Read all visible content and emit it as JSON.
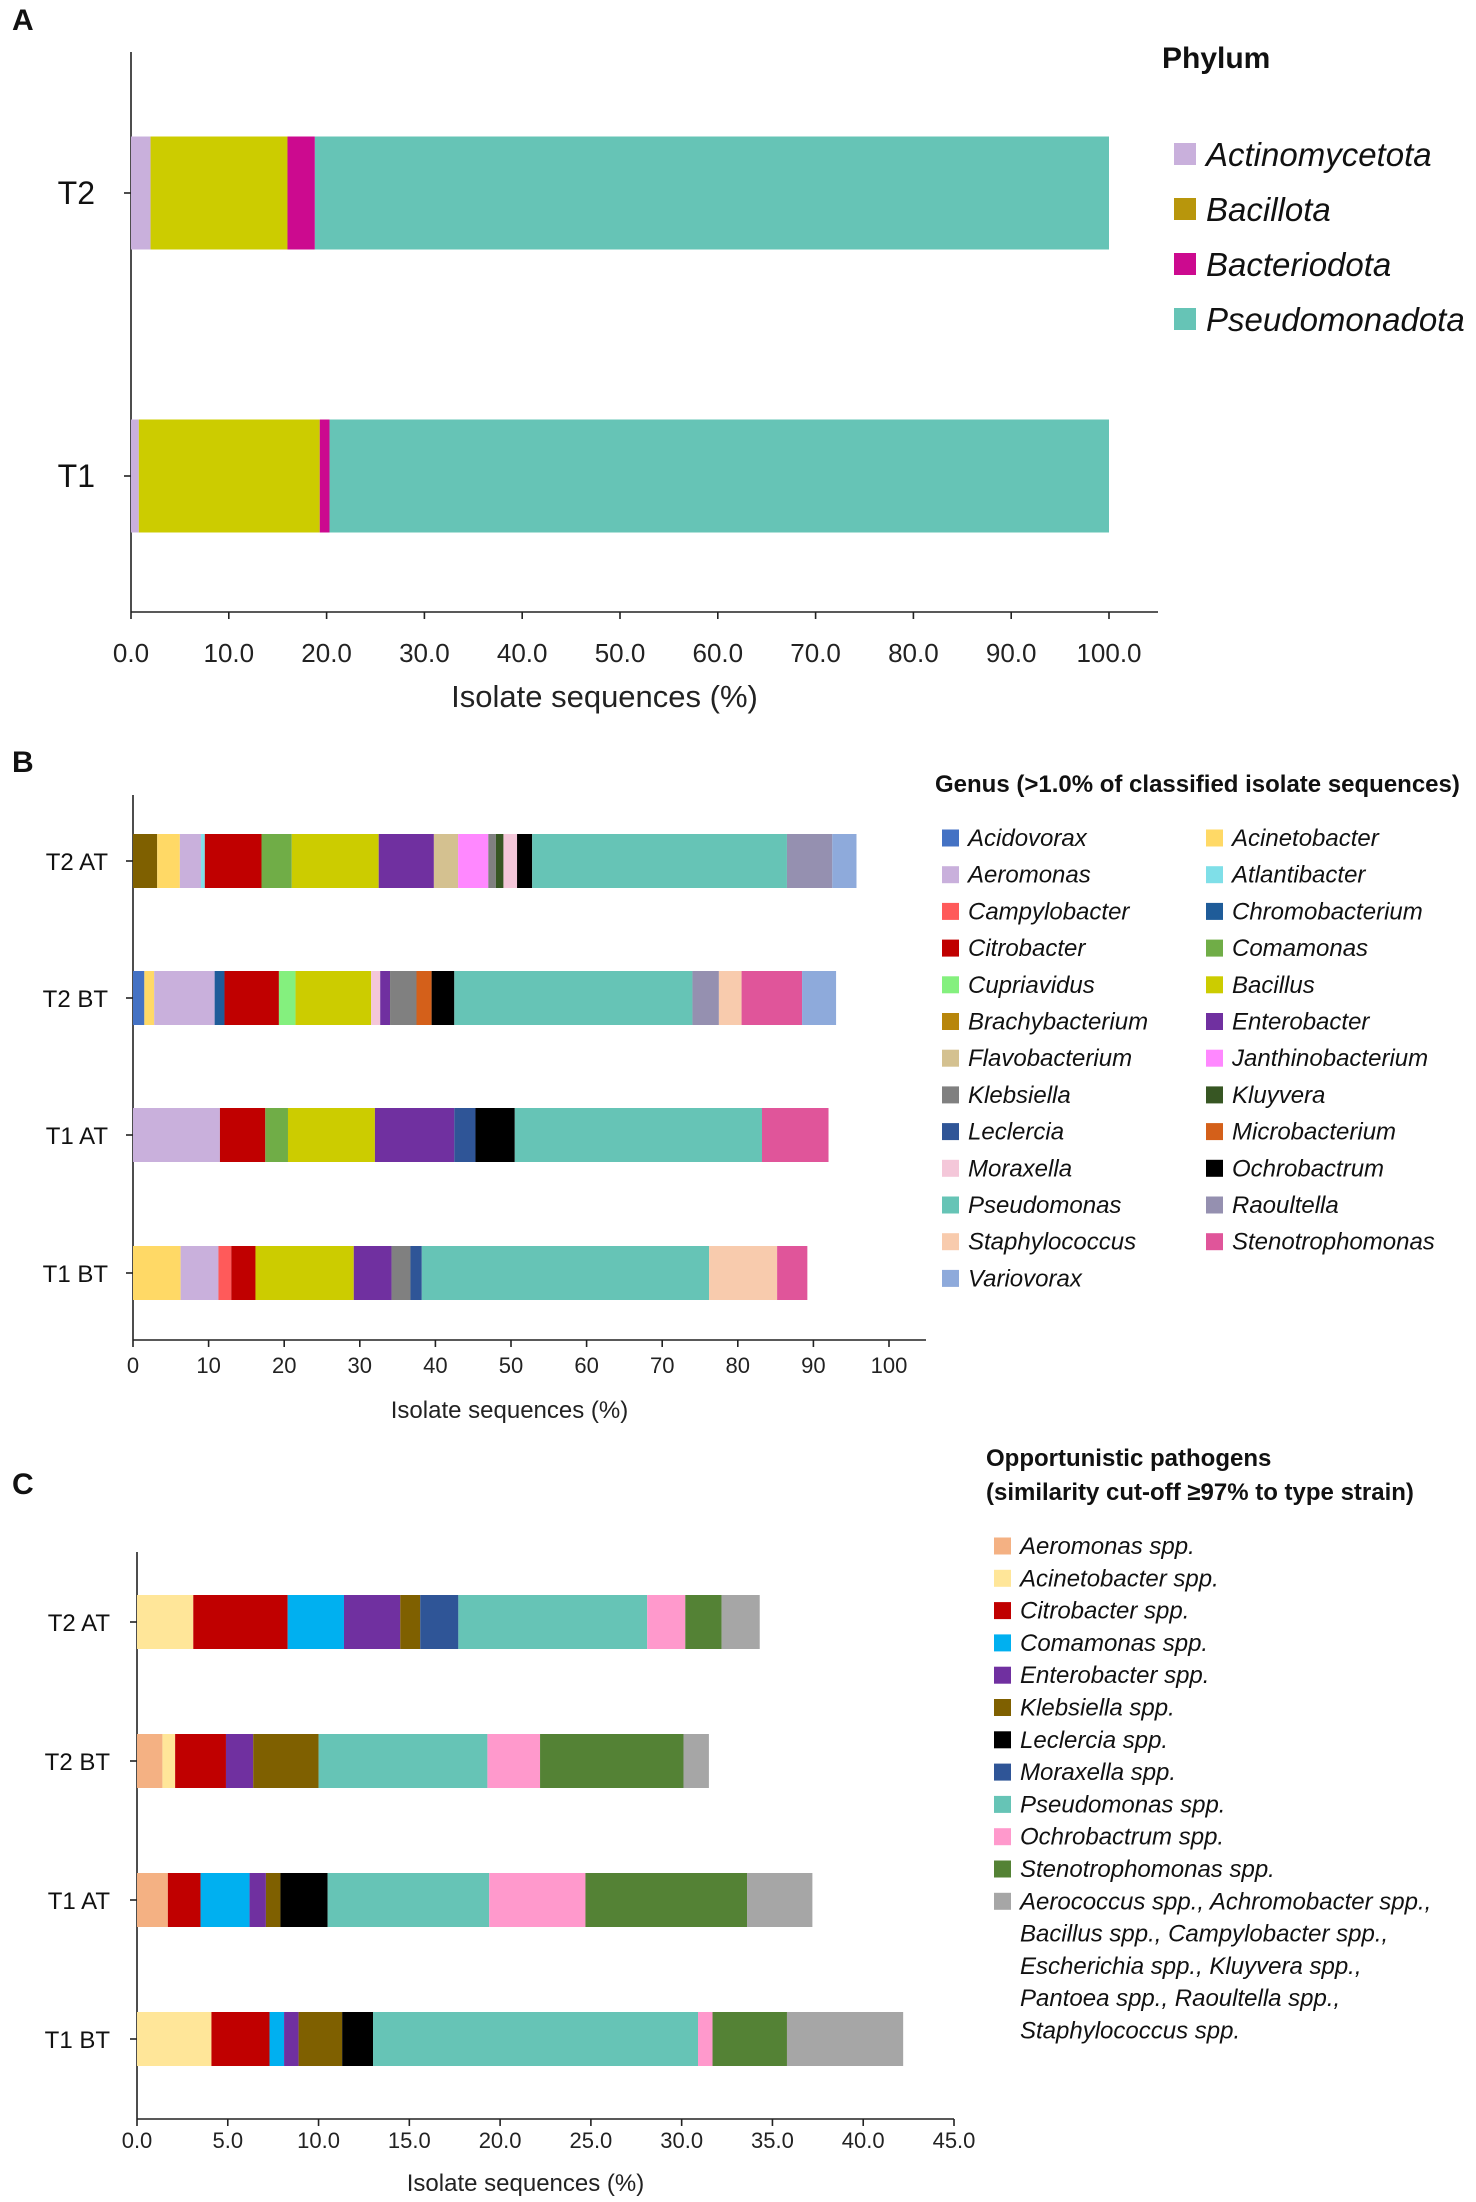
{
  "chart_data": [
    {
      "panel": "A",
      "type": "bar",
      "orientation": "horizontal",
      "stacked": true,
      "categories": [
        "T2",
        "T1"
      ],
      "xlabel": "Isolate sequences (%)",
      "xticks": [
        "0.0",
        "10.0",
        "20.0",
        "30.0",
        "40.0",
        "50.0",
        "60.0",
        "70.0",
        "80.0",
        "90.0",
        "100.0"
      ],
      "xlim": [
        0,
        105
      ],
      "legend_title": "Phylum",
      "legend_position": "right",
      "series": [
        {
          "name": "Actinomycetota",
          "color": "#c9b0dc",
          "values": [
            2.0,
            0.8
          ]
        },
        {
          "name": "Bacillota",
          "color": "#b8960c",
          "values": [
            0,
            0
          ]
        },
        {
          "name": "Bacillota (yellow segment)",
          "color": "#cccc00",
          "values": [
            14.0,
            18.5
          ]
        },
        {
          "name": "Bacteriodota",
          "color": "#cc0a8f",
          "values": [
            2.8,
            1.0
          ]
        },
        {
          "name": "Pseudomonadota",
          "color": "#66c4b6",
          "values": [
            81.2,
            79.7
          ]
        }
      ],
      "legend": [
        {
          "name": "Actinomycetota",
          "color": "#c9b0dc"
        },
        {
          "name": "Bacillota",
          "color": "#b8960c"
        },
        {
          "name": "Bacteriodota",
          "color": "#cc0a8f"
        },
        {
          "name": "Pseudomonadota",
          "color": "#66c4b6"
        }
      ]
    },
    {
      "panel": "B",
      "type": "bar",
      "orientation": "horizontal",
      "stacked": true,
      "categories": [
        "T2 AT",
        "T2 BT",
        "T1 AT",
        "T1 BT"
      ],
      "xlabel": "Isolate sequences (%)",
      "xticks": [
        "0",
        "10",
        "20",
        "30",
        "40",
        "50",
        "60",
        "70",
        "80",
        "90",
        "100"
      ],
      "xlim": [
        0,
        105
      ],
      "legend_title": "Genus (>1.0% of classified isolate sequences)",
      "legend_position": "right",
      "legend": [
        {
          "name": "Acidovorax",
          "color": "#4472c4"
        },
        {
          "name": "Acinetobacter",
          "color": "#ffd966"
        },
        {
          "name": "Aeromonas",
          "color": "#c9b0dc"
        },
        {
          "name": "Atlantibacter",
          "color": "#7fdfe8"
        },
        {
          "name": "Campylobacter",
          "color": "#ff5a5a"
        },
        {
          "name": "Chromobacterium",
          "color": "#1f5c99"
        },
        {
          "name": "Citrobacter",
          "color": "#c00000"
        },
        {
          "name": "Comamonas",
          "color": "#70ad47"
        },
        {
          "name": "Cupriavidus",
          "color": "#84f07e"
        },
        {
          "name": "Bacillus",
          "color": "#cccc00"
        },
        {
          "name": "Brachybacterium",
          "color": "#b8860b"
        },
        {
          "name": "Enterobacter",
          "color": "#7030a0"
        },
        {
          "name": "Flavobacterium",
          "color": "#d4c190"
        },
        {
          "name": "Janthinobacterium",
          "color": "#ff88ff"
        },
        {
          "name": "Klebsiella",
          "color": "#808080"
        },
        {
          "name": "Kluyvera",
          "color": "#375623"
        },
        {
          "name": "Leclercia",
          "color": "#2f5597"
        },
        {
          "name": "Microbacterium",
          "color": "#d4601a"
        },
        {
          "name": "Moraxella",
          "color": "#f4c7d9"
        },
        {
          "name": "Ochrobactrum",
          "color": "#000000"
        },
        {
          "name": "Pseudomonas",
          "color": "#66c4b6"
        },
        {
          "name": "Raoultella",
          "color": "#9590b0"
        },
        {
          "name": "Staphylococcus",
          "color": "#f8cbad"
        },
        {
          "name": "Stenotrophomonas",
          "color": "#e0559a"
        },
        {
          "name": "Variovorax",
          "color": "#8eaadb"
        }
      ],
      "stacks": [
        {
          "category": "T2 AT",
          "segments": [
            {
              "genus": "Brachybacterium",
              "color": "#7f6000",
              "value": 3.2
            },
            {
              "genus": "Acinetobacter",
              "color": "#ffd966",
              "value": 3.0
            },
            {
              "genus": "Aeromonas",
              "color": "#c9b0dc",
              "value": 2.8
            },
            {
              "genus": "Atlantibacter",
              "color": "#7fdfe8",
              "value": 0.5
            },
            {
              "genus": "Citrobacter",
              "color": "#c00000",
              "value": 7.5
            },
            {
              "genus": "Comamonas",
              "color": "#70ad47",
              "value": 4.0
            },
            {
              "genus": "Bacillus",
              "color": "#cccc00",
              "value": 11.5
            },
            {
              "genus": "Enterobacter",
              "color": "#7030a0",
              "value": 7.3
            },
            {
              "genus": "Flavobacterium",
              "color": "#d4c190",
              "value": 3.2
            },
            {
              "genus": "Janthinobacterium",
              "color": "#ff88ff",
              "value": 4.0
            },
            {
              "genus": "Klebsiella",
              "color": "#808080",
              "value": 1.0
            },
            {
              "genus": "Kluyvera",
              "color": "#375623",
              "value": 1.0
            },
            {
              "genus": "Moraxella",
              "color": "#f4c7d9",
              "value": 1.8
            },
            {
              "genus": "Ochrobactrum",
              "color": "#000000",
              "value": 2.0
            },
            {
              "genus": "Pseudomonas",
              "color": "#66c4b6",
              "value": 33.7
            },
            {
              "genus": "Raoultella",
              "color": "#9590b0",
              "value": 6.0
            },
            {
              "genus": "Variovorax",
              "color": "#8eaadb",
              "value": 3.2
            }
          ]
        },
        {
          "category": "T2 BT",
          "segments": [
            {
              "genus": "Acidovorax",
              "color": "#4472c4",
              "value": 1.5
            },
            {
              "genus": "Acinetobacter",
              "color": "#ffd966",
              "value": 1.3
            },
            {
              "genus": "Aeromonas",
              "color": "#c9b0dc",
              "value": 8.0
            },
            {
              "genus": "Chromobacterium",
              "color": "#1f5c99",
              "value": 1.3
            },
            {
              "genus": "Citrobacter",
              "color": "#c00000",
              "value": 7.2
            },
            {
              "genus": "Cupriavidus",
              "color": "#84f07e",
              "value": 2.2
            },
            {
              "genus": "Bacillus",
              "color": "#cccc00",
              "value": 10.0
            },
            {
              "genus": "Moraxella",
              "color": "#f4c7d9",
              "value": 1.2
            },
            {
              "genus": "Enterobacter",
              "color": "#7030a0",
              "value": 1.3
            },
            {
              "genus": "Klebsiella",
              "color": "#808080",
              "value": 3.5
            },
            {
              "genus": "Microbacterium",
              "color": "#d4601a",
              "value": 2.0
            },
            {
              "genus": "Ochrobactrum",
              "color": "#000000",
              "value": 3.0
            },
            {
              "genus": "Pseudomonas",
              "color": "#66c4b6",
              "value": 31.5
            },
            {
              "genus": "Raoultella",
              "color": "#9590b0",
              "value": 3.5
            },
            {
              "genus": "Staphylococcus",
              "color": "#f8cbad",
              "value": 3.0
            },
            {
              "genus": "Stenotrophomonas",
              "color": "#e0559a",
              "value": 8.0
            },
            {
              "genus": "Variovorax",
              "color": "#8eaadb",
              "value": 4.5
            }
          ]
        },
        {
          "category": "T1 AT",
          "segments": [
            {
              "genus": "Aeromonas",
              "color": "#c9b0dc",
              "value": 11.5
            },
            {
              "genus": "Citrobacter",
              "color": "#c00000",
              "value": 6.0
            },
            {
              "genus": "Comamonas",
              "color": "#70ad47",
              "value": 3.0
            },
            {
              "genus": "Bacillus",
              "color": "#cccc00",
              "value": 11.5
            },
            {
              "genus": "Enterobacter",
              "color": "#7030a0",
              "value": 10.5
            },
            {
              "genus": "Leclercia",
              "color": "#2f5597",
              "value": 2.8
            },
            {
              "genus": "Ochrobactrum",
              "color": "#000000",
              "value": 5.2
            },
            {
              "genus": "Pseudomonas",
              "color": "#66c4b6",
              "value": 32.7
            },
            {
              "genus": "Stenotrophomonas",
              "color": "#e0559a",
              "value": 8.8
            }
          ]
        },
        {
          "category": "T1 BT",
          "segments": [
            {
              "genus": "Acinetobacter",
              "color": "#ffd966",
              "value": 6.3
            },
            {
              "genus": "Aeromonas",
              "color": "#c9b0dc",
              "value": 5.0
            },
            {
              "genus": "Campylobacter",
              "color": "#ff5a5a",
              "value": 1.7
            },
            {
              "genus": "Citrobacter",
              "color": "#c00000",
              "value": 3.2
            },
            {
              "genus": "Bacillus",
              "color": "#cccc00",
              "value": 13.0
            },
            {
              "genus": "Enterobacter",
              "color": "#7030a0",
              "value": 5.0
            },
            {
              "genus": "Klebsiella",
              "color": "#808080",
              "value": 2.5
            },
            {
              "genus": "Leclercia",
              "color": "#2f5597",
              "value": 1.5
            },
            {
              "genus": "Pseudomonas",
              "color": "#66c4b6",
              "value": 38.0
            },
            {
              "genus": "Staphylococcus",
              "color": "#f8cbad",
              "value": 9.0
            },
            {
              "genus": "Stenotrophomonas",
              "color": "#e0559a",
              "value": 4.0
            }
          ]
        }
      ]
    },
    {
      "panel": "C",
      "type": "bar",
      "orientation": "horizontal",
      "stacked": true,
      "categories": [
        "T2 AT",
        "T2 BT",
        "T1 AT",
        "T1 BT"
      ],
      "xlabel": "Isolate sequences (%)",
      "xticks": [
        "0.0",
        "5.0",
        "10.0",
        "15.0",
        "20.0",
        "25.0",
        "30.0",
        "35.0",
        "40.0",
        "45.0"
      ],
      "xlim": [
        0,
        45
      ],
      "legend_title": [
        "Opportunistic pathogens",
        "(similarity cut-off ≥97% to type strain)"
      ],
      "legend_position": "right",
      "legend": [
        {
          "name": "Aeromonas spp.",
          "color": "#f4b183"
        },
        {
          "name": "Acinetobacter spp.",
          "color": "#ffe699"
        },
        {
          "name": "Citrobacter spp.",
          "color": "#c00000"
        },
        {
          "name": "Comamonas spp.",
          "color": "#00b0f0"
        },
        {
          "name": "Enterobacter spp.",
          "color": "#7030a0"
        },
        {
          "name": "Klebsiella spp.",
          "color": "#7f6000"
        },
        {
          "name": "Leclercia spp.",
          "color": "#000000"
        },
        {
          "name": "Moraxella spp.",
          "color": "#2f5597"
        },
        {
          "name": "Pseudomonas spp.",
          "color": "#66c4b6"
        },
        {
          "name": "Ochrobactrum spp.",
          "color": "#ff99cc"
        },
        {
          "name": "Stenotrophomonas spp.",
          "color": "#548235"
        },
        {
          "name": "Aerococcus spp., Achromobacter spp.,",
          "continuation": [
            "Bacillus spp., Campylobacter spp.,",
            "Escherichia spp., Kluyvera spp.,",
            "Pantoea spp., Raoultella spp.,",
            "Staphylococcus spp."
          ],
          "color": "#a6a6a6"
        }
      ],
      "stacks": [
        {
          "category": "T2 AT",
          "segments": [
            {
              "taxon": "Acinetobacter spp.",
              "color": "#ffe699",
              "value": 3.1
            },
            {
              "taxon": "Citrobacter spp.",
              "color": "#c00000",
              "value": 5.2
            },
            {
              "taxon": "Comamonas spp.",
              "color": "#00b0f0",
              "value": 3.1
            },
            {
              "taxon": "Enterobacter spp.",
              "color": "#7030a0",
              "value": 3.1
            },
            {
              "taxon": "Klebsiella spp.",
              "color": "#7f6000",
              "value": 1.1
            },
            {
              "taxon": "Moraxella spp.",
              "color": "#2f5597",
              "value": 2.1
            },
            {
              "taxon": "Pseudomonas spp.",
              "color": "#66c4b6",
              "value": 10.4
            },
            {
              "taxon": "Ochrobactrum spp.",
              "color": "#ff99cc",
              "value": 2.1
            },
            {
              "taxon": "Stenotrophomonas spp.",
              "color": "#548235",
              "value": 2.0
            },
            {
              "taxon": "Other",
              "color": "#a6a6a6",
              "value": 2.1
            }
          ]
        },
        {
          "category": "T2 BT",
          "segments": [
            {
              "taxon": "Aeromonas spp.",
              "color": "#f4b183",
              "value": 1.4
            },
            {
              "taxon": "Acinetobacter spp.",
              "color": "#ffe699",
              "value": 0.7
            },
            {
              "taxon": "Citrobacter spp.",
              "color": "#c00000",
              "value": 2.8
            },
            {
              "taxon": "Enterobacter spp.",
              "color": "#7030a0",
              "value": 1.5
            },
            {
              "taxon": "Klebsiella spp.",
              "color": "#7f6000",
              "value": 3.6
            },
            {
              "taxon": "Pseudomonas spp.",
              "color": "#66c4b6",
              "value": 9.3
            },
            {
              "taxon": "Ochrobactrum spp.",
              "color": "#ff99cc",
              "value": 2.9
            },
            {
              "taxon": "Stenotrophomonas spp.",
              "color": "#548235",
              "value": 7.9
            },
            {
              "taxon": "Other",
              "color": "#a6a6a6",
              "value": 1.4
            }
          ]
        },
        {
          "category": "T1 AT",
          "segments": [
            {
              "taxon": "Aeromonas spp.",
              "color": "#f4b183",
              "value": 1.7
            },
            {
              "taxon": "Citrobacter spp.",
              "color": "#c00000",
              "value": 1.8
            },
            {
              "taxon": "Comamonas spp.",
              "color": "#00b0f0",
              "value": 2.7
            },
            {
              "taxon": "Enterobacter spp.",
              "color": "#7030a0",
              "value": 0.9
            },
            {
              "taxon": "Klebsiella spp.",
              "color": "#7f6000",
              "value": 0.8
            },
            {
              "taxon": "Leclercia spp.",
              "color": "#000000",
              "value": 2.6
            },
            {
              "taxon": "Pseudomonas spp.",
              "color": "#66c4b6",
              "value": 8.9
            },
            {
              "taxon": "Ochrobactrum spp.",
              "color": "#ff99cc",
              "value": 5.3
            },
            {
              "taxon": "Stenotrophomonas spp.",
              "color": "#548235",
              "value": 8.9
            },
            {
              "taxon": "Other",
              "color": "#a6a6a6",
              "value": 3.6
            }
          ]
        },
        {
          "category": "T1 BT",
          "segments": [
            {
              "taxon": "Acinetobacter spp.",
              "color": "#ffe699",
              "value": 4.1
            },
            {
              "taxon": "Citrobacter spp.",
              "color": "#c00000",
              "value": 3.2
            },
            {
              "taxon": "Comamonas spp.",
              "color": "#00b0f0",
              "value": 0.8
            },
            {
              "taxon": "Enterobacter spp.",
              "color": "#7030a0",
              "value": 0.8
            },
            {
              "taxon": "Klebsiella spp.",
              "color": "#7f6000",
              "value": 2.4
            },
            {
              "taxon": "Leclercia spp.",
              "color": "#000000",
              "value": 1.7
            },
            {
              "taxon": "Pseudomonas spp.",
              "color": "#66c4b6",
              "value": 17.9
            },
            {
              "taxon": "Ochrobactrum spp.",
              "color": "#ff99cc",
              "value": 0.8
            },
            {
              "taxon": "Stenotrophomonas spp.",
              "color": "#548235",
              "value": 4.1
            },
            {
              "taxon": "Other",
              "color": "#a6a6a6",
              "value": 6.4
            }
          ]
        }
      ]
    }
  ]
}
